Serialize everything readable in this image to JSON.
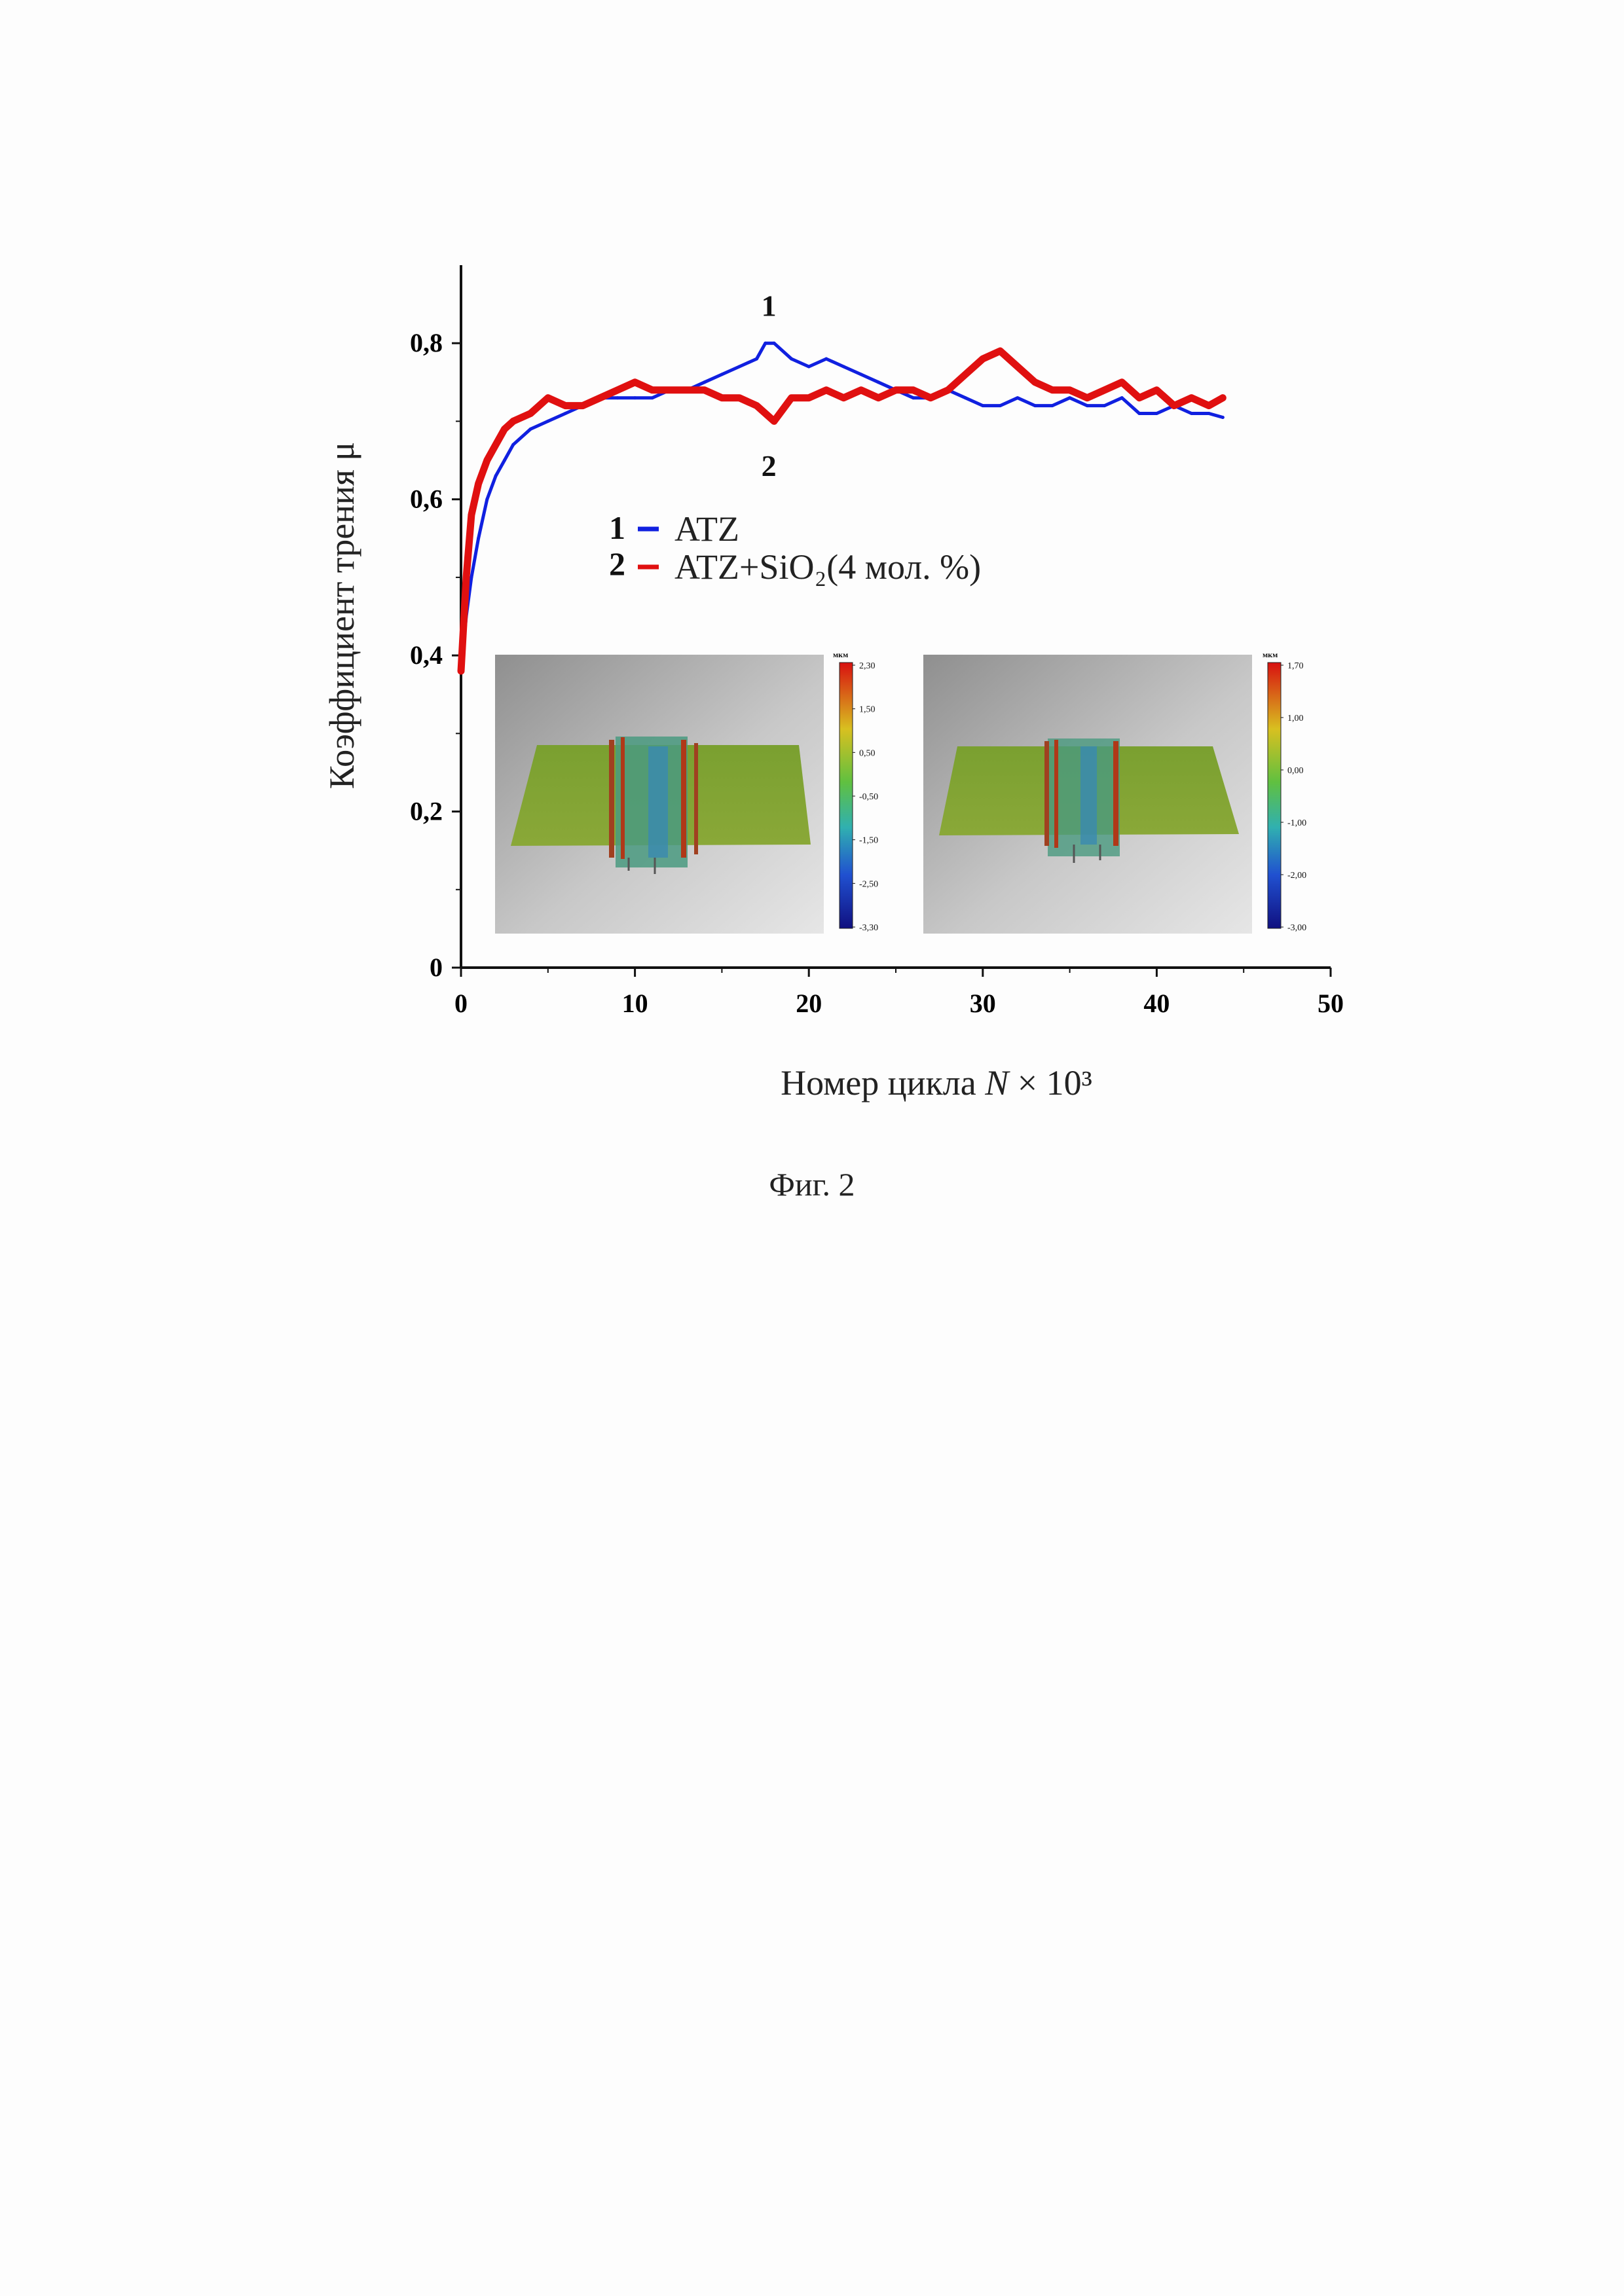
{
  "chart_data": {
    "type": "line",
    "xlabel_prefix": "Номер цикла ",
    "xlabel_var": "N",
    "xlabel_suffix": " × 10³",
    "ylabel": "Коэффициент трения μ",
    "xlim": [
      0,
      50
    ],
    "ylim": [
      0,
      0.9
    ],
    "x_ticks": [
      0,
      10,
      20,
      30,
      40,
      50
    ],
    "x_tick_labels": [
      "0",
      "10",
      "20",
      "30",
      "40",
      "50"
    ],
    "y_ticks": [
      0,
      0.2,
      0.4,
      0.6,
      0.8
    ],
    "y_tick_labels": [
      "0",
      "0,2",
      "0,4",
      "0,6",
      "0,8"
    ],
    "legend_placement": "upper-center",
    "series": [
      {
        "name": "ATZ",
        "marker": "1",
        "color": "#1020e0",
        "x": [
          0,
          0.3,
          0.6,
          1,
          1.5,
          2,
          2.5,
          3,
          4,
          5,
          6,
          7,
          8,
          9,
          10,
          11,
          12,
          13,
          14,
          15,
          16,
          17,
          17.5,
          18,
          19,
          20,
          21,
          22,
          23,
          24,
          25,
          26,
          27,
          28,
          29,
          30,
          31,
          32,
          33,
          34,
          35,
          36,
          37,
          38,
          39,
          40,
          41,
          42,
          43,
          43.8
        ],
        "y": [
          0.38,
          0.45,
          0.5,
          0.55,
          0.6,
          0.63,
          0.65,
          0.67,
          0.69,
          0.7,
          0.71,
          0.72,
          0.73,
          0.73,
          0.73,
          0.73,
          0.74,
          0.74,
          0.75,
          0.76,
          0.77,
          0.78,
          0.8,
          0.8,
          0.78,
          0.77,
          0.78,
          0.77,
          0.76,
          0.75,
          0.74,
          0.73,
          0.73,
          0.74,
          0.73,
          0.72,
          0.72,
          0.73,
          0.72,
          0.72,
          0.73,
          0.72,
          0.72,
          0.73,
          0.71,
          0.71,
          0.72,
          0.71,
          0.71,
          0.705
        ]
      },
      {
        "name": "ATZ+SiO₂(4 мол. %)",
        "marker": "2",
        "color": "#e01010",
        "x": [
          0,
          0.3,
          0.6,
          1,
          1.5,
          2,
          2.5,
          3,
          4,
          5,
          6,
          7,
          8,
          9,
          10,
          11,
          12,
          13,
          14,
          15,
          16,
          17,
          17.5,
          18,
          19,
          20,
          21,
          22,
          23,
          24,
          25,
          26,
          27,
          28,
          29,
          30,
          31,
          32,
          33,
          34,
          35,
          36,
          37,
          38,
          39,
          40,
          41,
          42,
          43,
          43.8
        ],
        "y": [
          0.38,
          0.5,
          0.58,
          0.62,
          0.65,
          0.67,
          0.69,
          0.7,
          0.71,
          0.73,
          0.72,
          0.72,
          0.73,
          0.74,
          0.75,
          0.74,
          0.74,
          0.74,
          0.74,
          0.73,
          0.73,
          0.72,
          0.71,
          0.7,
          0.73,
          0.73,
          0.74,
          0.73,
          0.74,
          0.73,
          0.74,
          0.74,
          0.73,
          0.74,
          0.76,
          0.78,
          0.79,
          0.77,
          0.75,
          0.74,
          0.74,
          0.73,
          0.74,
          0.75,
          0.73,
          0.74,
          0.72,
          0.73,
          0.72,
          0.73
        ]
      }
    ],
    "annotations": [
      {
        "text": "1",
        "x": 17.7,
        "y": 0.835
      },
      {
        "text": "2",
        "x": 17.7,
        "y": 0.655
      }
    ],
    "insets": [
      {
        "colorbar_unit": "мкм",
        "colorbar_ticks": [
          "2,30",
          "1,50",
          "0,50",
          "-0,50",
          "-1,50",
          "-2,50",
          "-3,30"
        ]
      },
      {
        "colorbar_unit": "мкм",
        "colorbar_ticks": [
          "1,70",
          "1,00",
          "0,00",
          "-1,00",
          "-2,00",
          "-3,00"
        ]
      }
    ]
  },
  "caption": "Фиг. 2"
}
